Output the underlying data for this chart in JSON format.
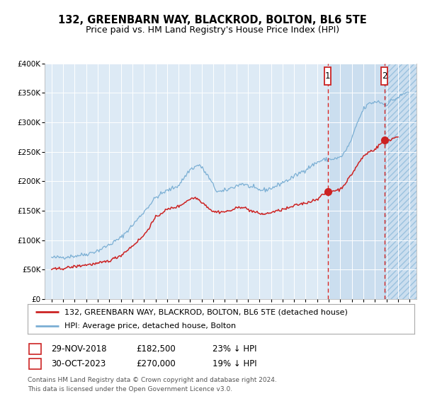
{
  "title": "132, GREENBARN WAY, BLACKROD, BOLTON, BL6 5TE",
  "subtitle": "Price paid vs. HM Land Registry's House Price Index (HPI)",
  "legend_line1": "132, GREENBARN WAY, BLACKROD, BOLTON, BL6 5TE (detached house)",
  "legend_line2": "HPI: Average price, detached house, Bolton",
  "footnote": "Contains HM Land Registry data © Crown copyright and database right 2024.\nThis data is licensed under the Open Government Licence v3.0.",
  "transaction1": {
    "label": "1",
    "date": "29-NOV-2018",
    "price": 182500,
    "pct": "23% ↓ HPI"
  },
  "transaction2": {
    "label": "2",
    "date": "30-OCT-2023",
    "price": 270000,
    "pct": "19% ↓ HPI"
  },
  "hpi_color": "#7bafd4",
  "price_color": "#cc2222",
  "background_color": "#ffffff",
  "plot_bg_color": "#ddeaf5",
  "grid_color": "#ffffff",
  "dashed_line_color": "#cc2222",
  "ylim": [
    0,
    400000
  ],
  "yticks": [
    0,
    50000,
    100000,
    150000,
    200000,
    250000,
    300000,
    350000,
    400000
  ],
  "x_start_year": 1995,
  "x_end_year": 2026,
  "transaction1_year": 2018.92,
  "transaction2_year": 2023.83,
  "hpi_breakpoints": [
    [
      1995.0,
      70000
    ],
    [
      1996.0,
      71000
    ],
    [
      1997.0,
      73000
    ],
    [
      1998.0,
      76000
    ],
    [
      1999.0,
      82000
    ],
    [
      2000.0,
      92000
    ],
    [
      2001.0,
      104000
    ],
    [
      2002.0,
      125000
    ],
    [
      2003.0,
      148000
    ],
    [
      2004.0,
      172000
    ],
    [
      2004.8,
      182000
    ],
    [
      2005.5,
      188000
    ],
    [
      2006.0,
      193000
    ],
    [
      2007.0,
      220000
    ],
    [
      2007.8,
      228000
    ],
    [
      2008.5,
      210000
    ],
    [
      2009.3,
      183000
    ],
    [
      2009.8,
      182000
    ],
    [
      2010.5,
      188000
    ],
    [
      2011.0,
      192000
    ],
    [
      2011.5,
      196000
    ],
    [
      2012.0,
      192000
    ],
    [
      2012.5,
      188000
    ],
    [
      2013.0,
      185000
    ],
    [
      2013.5,
      185000
    ],
    [
      2014.0,
      188000
    ],
    [
      2014.5,
      192000
    ],
    [
      2015.0,
      198000
    ],
    [
      2015.5,
      202000
    ],
    [
      2016.0,
      208000
    ],
    [
      2016.5,
      214000
    ],
    [
      2017.0,
      220000
    ],
    [
      2017.5,
      226000
    ],
    [
      2018.0,
      232000
    ],
    [
      2018.5,
      236000
    ],
    [
      2019.0,
      237000
    ],
    [
      2019.5,
      238000
    ],
    [
      2020.0,
      240000
    ],
    [
      2020.5,
      252000
    ],
    [
      2021.0,
      272000
    ],
    [
      2021.5,
      300000
    ],
    [
      2022.0,
      322000
    ],
    [
      2022.5,
      332000
    ],
    [
      2023.0,
      334000
    ],
    [
      2023.3,
      336000
    ],
    [
      2023.6,
      332000
    ],
    [
      2024.0,
      330000
    ],
    [
      2024.3,
      335000
    ],
    [
      2024.6,
      338000
    ],
    [
      2025.0,
      342000
    ],
    [
      2025.5,
      348000
    ],
    [
      2025.9,
      352000
    ]
  ],
  "price_breakpoints": [
    [
      1995.0,
      50000
    ],
    [
      1996.0,
      52000
    ],
    [
      1997.0,
      55000
    ],
    [
      1998.0,
      58000
    ],
    [
      1999.0,
      60000
    ],
    [
      2000.0,
      65000
    ],
    [
      2001.0,
      74000
    ],
    [
      2002.0,
      90000
    ],
    [
      2003.0,
      108000
    ],
    [
      2004.0,
      138000
    ],
    [
      2004.8,
      150000
    ],
    [
      2005.5,
      155000
    ],
    [
      2006.0,
      157000
    ],
    [
      2007.0,
      170000
    ],
    [
      2007.5,
      172000
    ],
    [
      2008.0,
      165000
    ],
    [
      2009.0,
      148000
    ],
    [
      2010.0,
      148000
    ],
    [
      2010.5,
      150000
    ],
    [
      2011.0,
      154000
    ],
    [
      2011.5,
      157000
    ],
    [
      2012.0,
      152000
    ],
    [
      2012.5,
      148000
    ],
    [
      2013.0,
      145000
    ],
    [
      2013.5,
      144000
    ],
    [
      2014.0,
      147000
    ],
    [
      2014.5,
      149000
    ],
    [
      2015.0,
      152000
    ],
    [
      2015.5,
      154000
    ],
    [
      2016.0,
      158000
    ],
    [
      2016.5,
      161000
    ],
    [
      2017.0,
      163000
    ],
    [
      2017.5,
      166000
    ],
    [
      2018.0,
      170000
    ],
    [
      2018.92,
      182500
    ],
    [
      2019.0,
      183000
    ],
    [
      2019.5,
      184000
    ],
    [
      2020.0,
      186000
    ],
    [
      2020.5,
      198000
    ],
    [
      2021.0,
      212000
    ],
    [
      2021.5,
      228000
    ],
    [
      2022.0,
      242000
    ],
    [
      2022.5,
      250000
    ],
    [
      2023.0,
      254000
    ],
    [
      2023.83,
      270000
    ],
    [
      2024.0,
      268000
    ],
    [
      2024.5,
      272000
    ],
    [
      2025.0,
      276000
    ]
  ]
}
